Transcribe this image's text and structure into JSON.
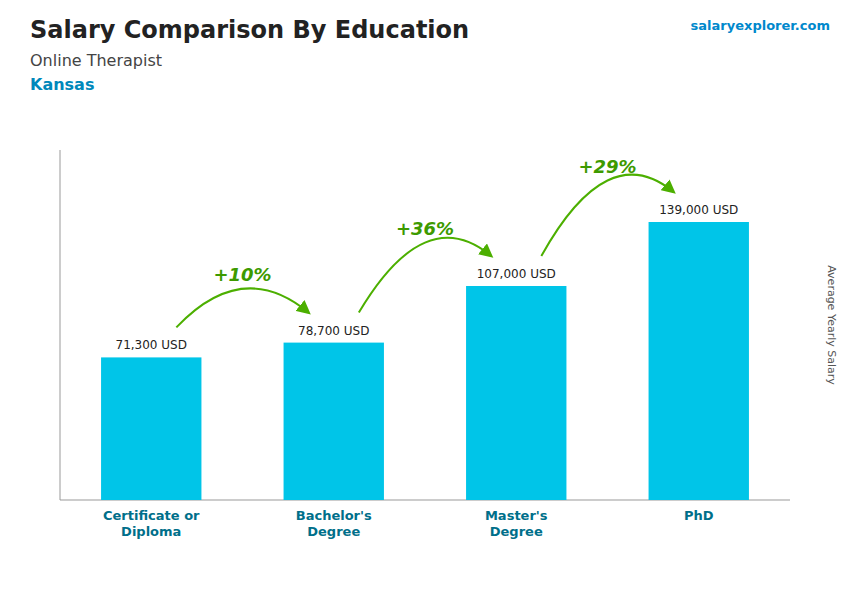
{
  "chart_data": {
    "type": "bar",
    "title": "Salary Comparison By Education",
    "subtitle": "Online Therapist",
    "location": "Kansas",
    "watermark": "salaryexplorer.com",
    "ylabel": "Average Yearly Salary",
    "categories": [
      "Certificate or\nDiploma",
      "Bachelor's\nDegree",
      "Master's\nDegree",
      "PhD"
    ],
    "values": [
      71300,
      78700,
      107000,
      139000
    ],
    "value_labels": [
      "71,300 USD",
      "78,700 USD",
      "107,000 USD",
      "139,000 USD"
    ],
    "data_labels": true,
    "annotations": [
      "+10%",
      "+36%",
      "+29%"
    ],
    "color": "#00c5e8",
    "ylim": [
      0,
      175000
    ],
    "grid": false,
    "tick_labels": "x"
  }
}
